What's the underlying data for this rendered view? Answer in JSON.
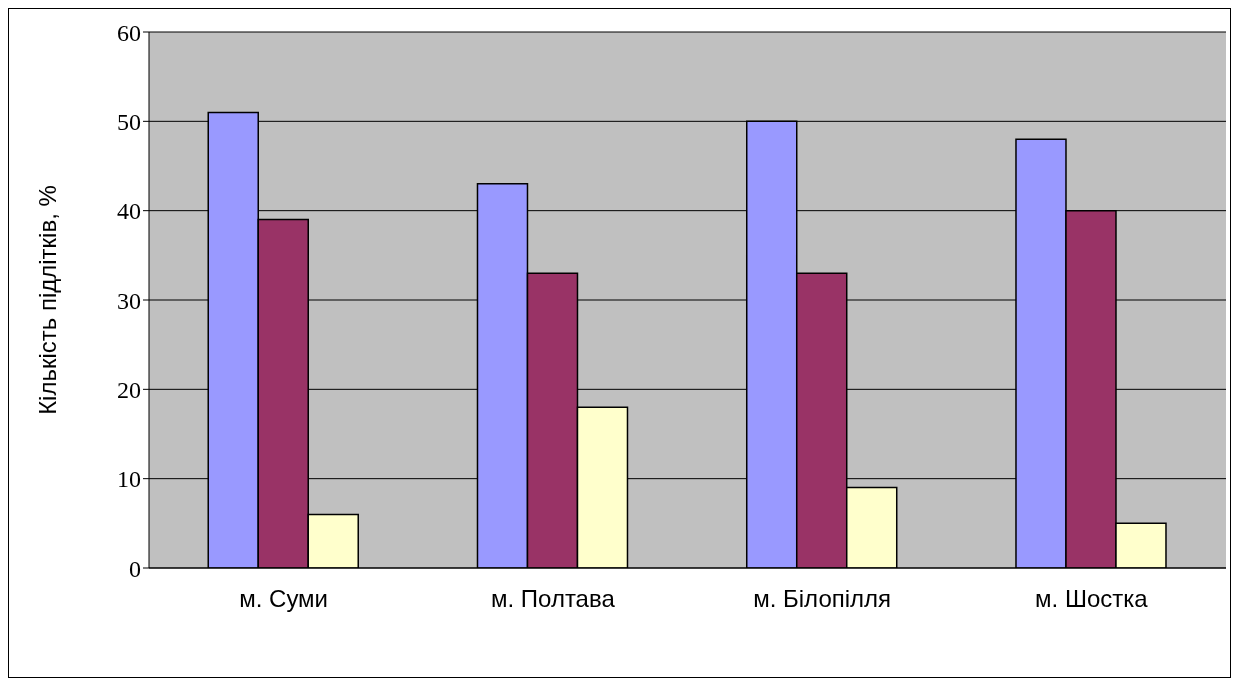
{
  "chart_data": {
    "type": "bar",
    "ylabel": "Кількість підлітків, %",
    "categories": [
      "м. Суми",
      "м. Полтава",
      "м. Білопілля",
      "м. Шостка"
    ],
    "series": [
      {
        "color": "#9999ff",
        "values": [
          51,
          43,
          50,
          48
        ]
      },
      {
        "color": "#993366",
        "values": [
          39,
          33,
          33,
          40
        ]
      },
      {
        "color": "#ffffcc",
        "values": [
          6,
          18,
          9,
          5
        ]
      }
    ],
    "ylim": [
      0,
      60
    ],
    "yticks": [
      0,
      10,
      20,
      30,
      40,
      50,
      60
    ],
    "grid": "y"
  }
}
